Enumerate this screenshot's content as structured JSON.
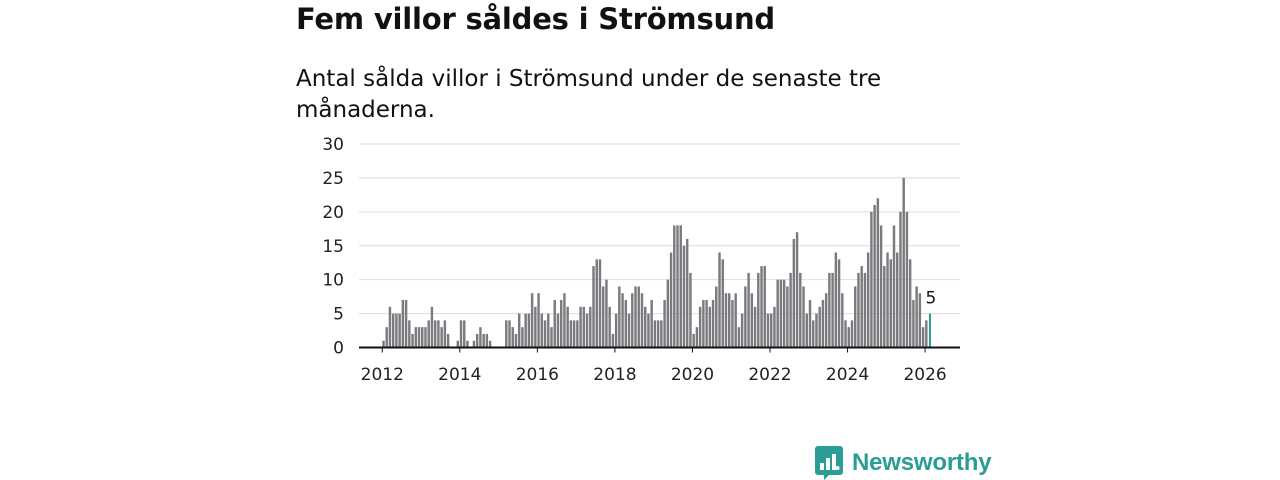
{
  "header": {
    "title": "Fem villor såldes i Strömsund",
    "subtitle": "Antal sålda villor i Strömsund under de senaste tre månaderna."
  },
  "brand": {
    "name": "Newsworthy",
    "icon": "newsworthy-logo-icon",
    "color": "#2a9d95"
  },
  "colors": {
    "bar": "#7a7a7f",
    "highlight": "#2a9d95",
    "grid": "#dddddd",
    "axis": "#111111"
  },
  "chart_data": {
    "type": "bar",
    "title": "Fem villor såldes i Strömsund",
    "subtitle": "Antal sålda villor i Strömsund under de senaste tre månaderna.",
    "xlabel": "",
    "ylabel": "",
    "ylim": [
      0,
      30
    ],
    "yticks": [
      0,
      5,
      10,
      15,
      20,
      25,
      30
    ],
    "xlim": [
      2011.4,
      2026.9
    ],
    "xticks": [
      "2012",
      "2014",
      "2016",
      "2018",
      "2020",
      "2022",
      "2024",
      "2026"
    ],
    "grid": true,
    "legend": "none",
    "start_year": 2012,
    "start_month": 1,
    "frequency": "monthly",
    "values": [
      1,
      3,
      6,
      5,
      5,
      5,
      7,
      7,
      4,
      2,
      3,
      3,
      3,
      3,
      4,
      6,
      4,
      4,
      3,
      4,
      2,
      0,
      0,
      1,
      4,
      4,
      1,
      0,
      1,
      2,
      3,
      2,
      2,
      1,
      0,
      0,
      0,
      0,
      4,
      4,
      3,
      2,
      5,
      3,
      5,
      5,
      8,
      6,
      8,
      5,
      4,
      5,
      3,
      7,
      5,
      7,
      8,
      6,
      4,
      4,
      4,
      6,
      6,
      5,
      6,
      12,
      13,
      13,
      9,
      10,
      6,
      2,
      5,
      9,
      8,
      7,
      5,
      8,
      9,
      9,
      8,
      6,
      5,
      7,
      4,
      4,
      4,
      7,
      10,
      14,
      18,
      18,
      18,
      15,
      16,
      11,
      2,
      3,
      6,
      7,
      7,
      6,
      7,
      9,
      14,
      13,
      8,
      8,
      7,
      8,
      3,
      5,
      9,
      11,
      8,
      6,
      11,
      12,
      12,
      5,
      5,
      6,
      10,
      10,
      10,
      9,
      11,
      16,
      17,
      11,
      9,
      5,
      7,
      4,
      5,
      6,
      7,
      8,
      11,
      11,
      14,
      13,
      8,
      4,
      3,
      4,
      9,
      11,
      12,
      11,
      14,
      20,
      21,
      22,
      18,
      12,
      14,
      13,
      18,
      14,
      20,
      25,
      20,
      13,
      7,
      9,
      8,
      3,
      4,
      5
    ],
    "highlight": {
      "label": "5",
      "value": 5,
      "month": "2026-02"
    }
  }
}
